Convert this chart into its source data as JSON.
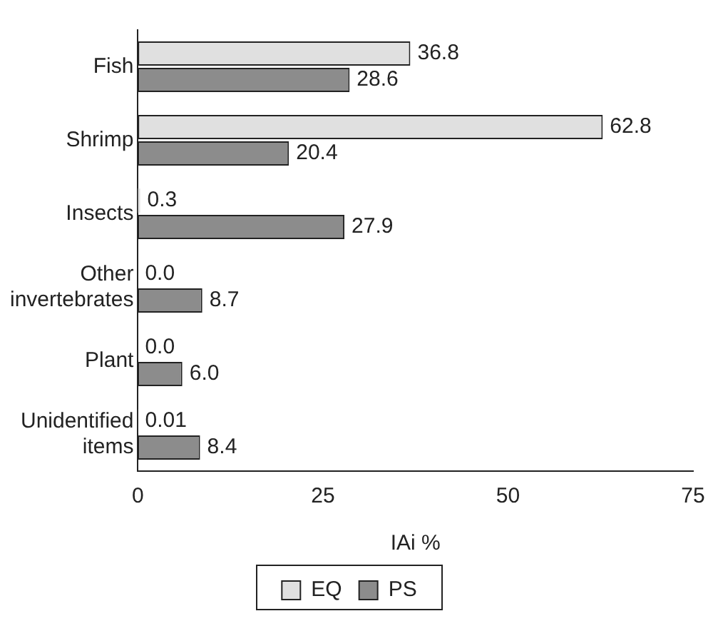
{
  "chart_data": {
    "type": "bar",
    "orientation": "horizontal",
    "xlabel": "IAi %",
    "categories": [
      "Fish",
      "Shrimp",
      "Insects",
      "Other invertebrates",
      "Plant",
      "Unidentified items"
    ],
    "series": [
      {
        "name": "EQ",
        "color": "#e0e0e0",
        "values": [
          36.8,
          62.8,
          0.3,
          0.0,
          0.0,
          0.01
        ],
        "value_labels": [
          "36.8",
          "62.8",
          "0.3",
          "0.0",
          "0.0",
          "0.01"
        ]
      },
      {
        "name": "PS",
        "color": "#8c8c8c",
        "values": [
          28.6,
          20.4,
          27.9,
          8.7,
          6.0,
          8.4
        ],
        "value_labels": [
          "28.6",
          "20.4",
          "27.9",
          "8.7",
          "6.0",
          "8.4"
        ]
      }
    ],
    "xlim": [
      0,
      75
    ],
    "xticks": [
      0,
      25,
      50,
      75
    ],
    "grid": false,
    "legend": "bottom"
  }
}
